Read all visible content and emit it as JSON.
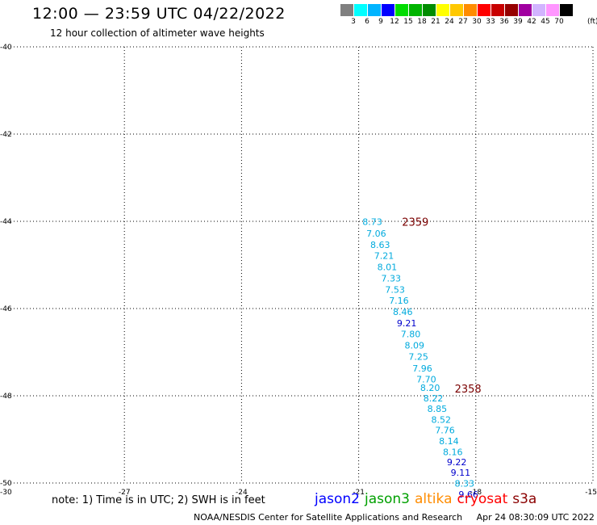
{
  "title": "12:00 — 23:59 UTC 04/22/2022",
  "subtitle": "12 hour collection of altimeter wave heights",
  "legend": {
    "unit": "(ft)",
    "items": [
      {
        "label": "3",
        "color": "#808080"
      },
      {
        "label": "6",
        "color": "#00ffff"
      },
      {
        "label": "9",
        "color": "#00b4ff"
      },
      {
        "label": "12",
        "color": "#0000ff"
      },
      {
        "label": "15",
        "color": "#00dc00"
      },
      {
        "label": "18",
        "color": "#00b400"
      },
      {
        "label": "21",
        "color": "#008c00"
      },
      {
        "label": "24",
        "color": "#ffff00"
      },
      {
        "label": "27",
        "color": "#ffc800"
      },
      {
        "label": "30",
        "color": "#ff8c00"
      },
      {
        "label": "33",
        "color": "#ff0000"
      },
      {
        "label": "36",
        "color": "#c80000"
      },
      {
        "label": "39",
        "color": "#960000"
      },
      {
        "label": "42",
        "color": "#a000a0"
      },
      {
        "label": "45",
        "color": "#d2b4ff"
      },
      {
        "label": "70",
        "color": "#ff96ff"
      },
      {
        "label": "",
        "color": "#000000"
      }
    ]
  },
  "map": {
    "lat_labels": [
      "-40",
      "-42",
      "-44",
      "-46",
      "-48",
      "-50"
    ],
    "lon_labels": [
      "-30",
      "-27",
      "-24",
      "-21",
      "-18",
      "-15"
    ],
    "lat_range": [
      -50,
      -40
    ],
    "lon_range": [
      -30,
      -15
    ],
    "colors": {
      "light": "#00aadd",
      "dark": "#0000cc",
      "time": "#7a0000"
    },
    "observations": [
      {
        "value": "8.73",
        "lat": -44.08,
        "lon": -20.65,
        "color": "light"
      },
      {
        "value": "7.06",
        "lat": -44.35,
        "lon": -20.55,
        "color": "light"
      },
      {
        "value": "8.63",
        "lat": -44.61,
        "lon": -20.45,
        "color": "light"
      },
      {
        "value": "7.21",
        "lat": -44.86,
        "lon": -20.35,
        "color": "light"
      },
      {
        "value": "8.01",
        "lat": -45.12,
        "lon": -20.27,
        "color": "light"
      },
      {
        "value": "7.33",
        "lat": -45.38,
        "lon": -20.17,
        "color": "light"
      },
      {
        "value": "7.53",
        "lat": -45.64,
        "lon": -20.07,
        "color": "light"
      },
      {
        "value": "7.16",
        "lat": -45.89,
        "lon": -19.97,
        "color": "light"
      },
      {
        "value": "8.46",
        "lat": -46.15,
        "lon": -19.87,
        "color": "light"
      },
      {
        "value": "9.21",
        "lat": -46.41,
        "lon": -19.77,
        "color": "dark"
      },
      {
        "value": "7.80",
        "lat": -46.66,
        "lon": -19.67,
        "color": "light"
      },
      {
        "value": "8.09",
        "lat": -46.92,
        "lon": -19.57,
        "color": "light"
      },
      {
        "value": "7.25",
        "lat": -47.18,
        "lon": -19.47,
        "color": "light"
      },
      {
        "value": "7.96",
        "lat": -47.44,
        "lon": -19.37,
        "color": "light"
      },
      {
        "value": "7.70",
        "lat": -47.69,
        "lon": -19.27,
        "color": "light"
      },
      {
        "value": "8.20",
        "lat": -47.89,
        "lon": -19.17,
        "color": "light"
      },
      {
        "value": "8.22",
        "lat": -48.13,
        "lon": -19.09,
        "color": "light"
      },
      {
        "value": "8.85",
        "lat": -48.37,
        "lon": -18.99,
        "color": "light"
      },
      {
        "value": "8.52",
        "lat": -48.62,
        "lon": -18.89,
        "color": "light"
      },
      {
        "value": "7.76",
        "lat": -48.86,
        "lon": -18.79,
        "color": "light"
      },
      {
        "value": "8.14",
        "lat": -49.11,
        "lon": -18.69,
        "color": "light"
      },
      {
        "value": "8.16",
        "lat": -49.36,
        "lon": -18.59,
        "color": "light"
      },
      {
        "value": "9.22",
        "lat": -49.59,
        "lon": -18.49,
        "color": "dark"
      },
      {
        "value": "9.11",
        "lat": -49.83,
        "lon": -18.39,
        "color": "dark"
      },
      {
        "value": "8.33",
        "lat": -50.08,
        "lon": -18.29,
        "color": "light"
      },
      {
        "value": "9.66",
        "lat": -50.33,
        "lon": -18.19,
        "color": "dark"
      }
    ],
    "time_labels": [
      {
        "text": "2359",
        "lat": -44.1,
        "lon": -19.55
      },
      {
        "text": "2358",
        "lat": -47.93,
        "lon": -18.2
      }
    ]
  },
  "note": "note: 1) Time is in UTC; 2) SWH is in feet",
  "satellites": [
    {
      "name": "jason2",
      "color": "#0000ff"
    },
    {
      "name": "jason3",
      "color": "#00a000"
    },
    {
      "name": "altika",
      "color": "#ff8c00"
    },
    {
      "name": "cryosat",
      "color": "#ff0000"
    },
    {
      "name": "s3a",
      "color": "#8b0000"
    }
  ],
  "footer": {
    "credit": "NOAA/NESDIS Center for Satellite Applications and Research",
    "timestamp": "Apr 24 08:30:09 UTC 2022"
  }
}
